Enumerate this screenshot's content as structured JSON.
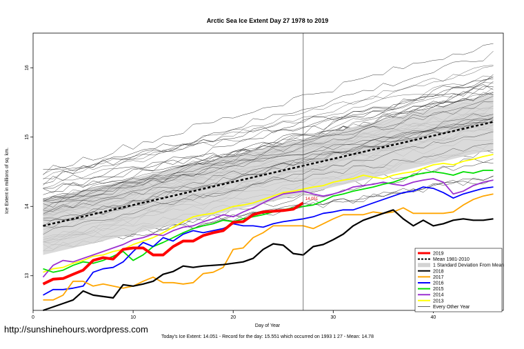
{
  "chart_data": {
    "type": "line",
    "title": "Arctic Sea Ice Extent Day 27 1978 to 2019",
    "xlabel": "Day of Year",
    "ylabel": "Ice Extent in millions of sq. km.",
    "xlim": [
      0,
      47
    ],
    "ylim": [
      12.5,
      16.5
    ],
    "x_ticks": [
      "0",
      "10",
      "20",
      "30",
      "40"
    ],
    "y_ticks": [
      "13",
      "14",
      "15",
      "16"
    ],
    "current_day": 27,
    "current_value_label": "14.051",
    "footer": "Today's Ice Extent: 14.051  - Record for the day: 15.551 which occurred on 1993 1 27  - Mean: 14.78",
    "watermark": "http://sunshinehours.wordpress.com",
    "legend": [
      "2019",
      "Mean 1981-2010",
      "1 Standard Deviation From Mean",
      "2018",
      "2017",
      "2016",
      "2015",
      "2014",
      "2013",
      "Every Other Year"
    ],
    "colors": {
      "y2019": "#ff0000",
      "mean": "#000000",
      "band": "#d3d3d3",
      "y2018": "#000000",
      "y2017": "#ffa500",
      "y2016": "#0000ff",
      "y2015": "#00dd00",
      "y2014": "#9b30d0",
      "y2013": "#ffff00",
      "other": "#000000"
    },
    "band": {
      "lower_start": 13.3,
      "lower_end": 14.82,
      "upper_start": 14.1,
      "upper_end": 15.62
    },
    "mean": {
      "start": 13.72,
      "end": 15.22
    },
    "series": [
      {
        "name": "2019",
        "x": [
          1,
          2,
          3,
          4,
          5,
          6,
          7,
          8,
          9,
          10,
          11,
          12,
          13,
          14,
          15,
          16,
          17,
          18,
          19,
          20,
          21,
          22,
          23,
          24,
          25,
          26,
          27
        ],
        "values": [
          12.88,
          12.95,
          12.96,
          13.02,
          13.08,
          13.22,
          13.26,
          13.24,
          13.38,
          13.4,
          13.4,
          13.3,
          13.3,
          13.42,
          13.5,
          13.5,
          13.58,
          13.62,
          13.65,
          13.77,
          13.78,
          13.88,
          13.92,
          13.93,
          13.94,
          13.96,
          14.05
        ]
      },
      {
        "name": "2018",
        "x": [
          1,
          2,
          3,
          4,
          5,
          6,
          7,
          8,
          9,
          10,
          11,
          12,
          13,
          14,
          15,
          16,
          17,
          18,
          19,
          20,
          21,
          22,
          23,
          24,
          25,
          26,
          27,
          28,
          29,
          30,
          31,
          32,
          33,
          34,
          35,
          36,
          37,
          38,
          39,
          40,
          41,
          42,
          43,
          44,
          45,
          46
        ],
        "values": [
          12.5,
          12.55,
          12.6,
          12.65,
          12.78,
          12.72,
          12.7,
          12.68,
          12.87,
          12.85,
          12.88,
          12.92,
          13.02,
          13.06,
          13.14,
          13.12,
          13.14,
          13.15,
          13.16,
          13.18,
          13.2,
          13.25,
          13.38,
          13.46,
          13.44,
          13.32,
          13.3,
          13.42,
          13.45,
          13.52,
          13.6,
          13.72,
          13.8,
          13.85,
          13.9,
          13.95,
          13.82,
          13.72,
          13.8,
          13.72,
          13.75,
          13.8,
          13.82,
          13.8,
          13.8,
          13.82
        ]
      },
      {
        "name": "2017",
        "x": [
          1,
          2,
          3,
          4,
          5,
          6,
          7,
          8,
          9,
          10,
          11,
          12,
          13,
          14,
          15,
          16,
          17,
          18,
          19,
          20,
          21,
          22,
          23,
          24,
          25,
          26,
          27,
          28,
          29,
          30,
          31,
          32,
          33,
          34,
          35,
          36,
          37,
          38,
          39,
          40,
          41,
          42,
          43,
          44,
          45,
          46
        ],
        "values": [
          12.65,
          12.65,
          12.72,
          12.92,
          12.92,
          12.85,
          12.88,
          12.85,
          12.82,
          12.85,
          12.92,
          12.98,
          12.9,
          12.9,
          12.88,
          12.9,
          13.03,
          13.05,
          13.12,
          13.38,
          13.4,
          13.55,
          13.62,
          13.72,
          13.72,
          13.72,
          13.72,
          13.68,
          13.75,
          13.82,
          13.88,
          13.88,
          13.88,
          13.92,
          13.9,
          13.92,
          13.98,
          13.9,
          13.9,
          13.9,
          13.9,
          13.92,
          14.02,
          14.1,
          14.15,
          14.18
        ]
      },
      {
        "name": "2016",
        "x": [
          1,
          2,
          3,
          4,
          5,
          6,
          7,
          8,
          9,
          10,
          11,
          12,
          13,
          14,
          15,
          16,
          17,
          18,
          19,
          20,
          21,
          22,
          23,
          24,
          25,
          26,
          27,
          28,
          29,
          30,
          31,
          32,
          33,
          34,
          35,
          36,
          37,
          38,
          39,
          40,
          41,
          42,
          43,
          44,
          45,
          46
        ],
        "values": [
          12.72,
          12.8,
          12.8,
          12.82,
          12.85,
          13.05,
          13.1,
          13.12,
          13.2,
          13.35,
          13.48,
          13.42,
          13.55,
          13.5,
          13.6,
          13.65,
          13.62,
          13.65,
          13.68,
          13.75,
          13.72,
          13.72,
          13.7,
          13.75,
          13.78,
          13.8,
          13.82,
          13.85,
          13.9,
          13.92,
          13.95,
          13.95,
          14.0,
          14.05,
          14.1,
          14.15,
          14.2,
          14.22,
          14.28,
          14.26,
          14.2,
          14.12,
          14.18,
          14.22,
          14.26,
          14.28
        ]
      },
      {
        "name": "2015",
        "x": [
          1,
          2,
          3,
          4,
          5,
          6,
          7,
          8,
          9,
          10,
          11,
          12,
          13,
          14,
          15,
          16,
          17,
          18,
          19,
          20,
          21,
          22,
          23,
          24,
          25,
          26,
          27,
          28,
          29,
          30,
          31,
          32,
          33,
          34,
          35,
          36,
          37,
          38,
          39,
          40,
          41,
          42,
          43,
          44,
          45,
          46
        ],
        "values": [
          13.1,
          13.05,
          13.08,
          13.15,
          13.2,
          13.18,
          13.22,
          13.28,
          13.35,
          13.22,
          13.3,
          13.42,
          13.48,
          13.55,
          13.62,
          13.68,
          13.72,
          13.75,
          13.8,
          13.78,
          13.82,
          13.85,
          13.88,
          13.92,
          13.95,
          13.98,
          14.0,
          14.02,
          14.08,
          14.15,
          14.18,
          14.22,
          14.25,
          14.28,
          14.32,
          14.35,
          14.4,
          14.45,
          14.48,
          14.5,
          14.48,
          14.45,
          14.5,
          14.48,
          14.52,
          14.52
        ]
      },
      {
        "name": "2014",
        "x": [
          1,
          2,
          3,
          4,
          5,
          6,
          7,
          8,
          9,
          10,
          11,
          12,
          13,
          14,
          15,
          16,
          17,
          18,
          19,
          20,
          21,
          22,
          23,
          24,
          25,
          26,
          27,
          28,
          29,
          30,
          31,
          32,
          33,
          34,
          35,
          36,
          37,
          38,
          39,
          40,
          41,
          42,
          43,
          44,
          45,
          46
        ],
        "values": [
          12.98,
          13.15,
          13.22,
          13.2,
          13.25,
          13.3,
          13.35,
          13.4,
          13.45,
          13.52,
          13.55,
          13.6,
          13.58,
          13.65,
          13.7,
          13.72,
          13.78,
          13.82,
          13.88,
          13.85,
          13.92,
          13.98,
          14.05,
          14.12,
          14.18,
          14.2,
          14.22,
          14.18,
          14.15,
          14.18,
          14.22,
          14.28,
          14.3,
          14.32,
          14.35,
          14.32,
          14.3,
          14.35,
          14.38,
          14.4,
          14.35,
          14.18,
          14.22,
          14.3,
          14.35,
          14.38
        ]
      },
      {
        "name": "2013",
        "x": [
          1,
          2,
          3,
          4,
          5,
          6,
          7,
          8,
          9,
          10,
          11,
          12,
          13,
          14,
          15,
          16,
          17,
          18,
          19,
          20,
          21,
          22,
          23,
          24,
          25,
          26,
          27,
          28,
          29,
          30,
          31,
          32,
          33,
          34,
          35,
          36,
          37,
          38,
          39,
          40,
          41,
          42,
          43,
          44,
          45,
          46
        ],
        "values": [
          13.05,
          13.1,
          13.12,
          13.18,
          13.22,
          13.28,
          13.3,
          13.35,
          13.38,
          13.45,
          13.5,
          13.55,
          13.62,
          13.7,
          13.78,
          13.85,
          13.88,
          13.9,
          13.95,
          14.0,
          14.02,
          14.05,
          14.1,
          14.15,
          14.2,
          14.22,
          14.25,
          14.28,
          14.3,
          14.35,
          14.38,
          14.4,
          14.45,
          14.42,
          14.4,
          14.45,
          14.48,
          14.5,
          14.55,
          14.6,
          14.62,
          14.6,
          14.65,
          14.68,
          14.72,
          14.75
        ]
      }
    ]
  }
}
